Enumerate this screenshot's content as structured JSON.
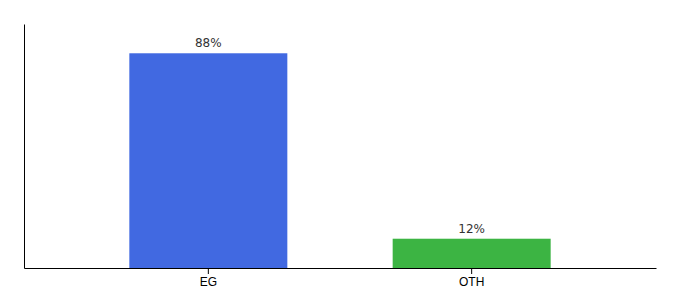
{
  "chart_data": {
    "type": "bar",
    "categories": [
      "EG",
      "OTH"
    ],
    "values": [
      88,
      12
    ],
    "value_labels": [
      "88%",
      "12%"
    ],
    "data_labels": true,
    "colors": [
      "#4169e1",
      "#3cb443"
    ],
    "ylim": [
      0,
      100
    ],
    "tick_labels": "x"
  }
}
